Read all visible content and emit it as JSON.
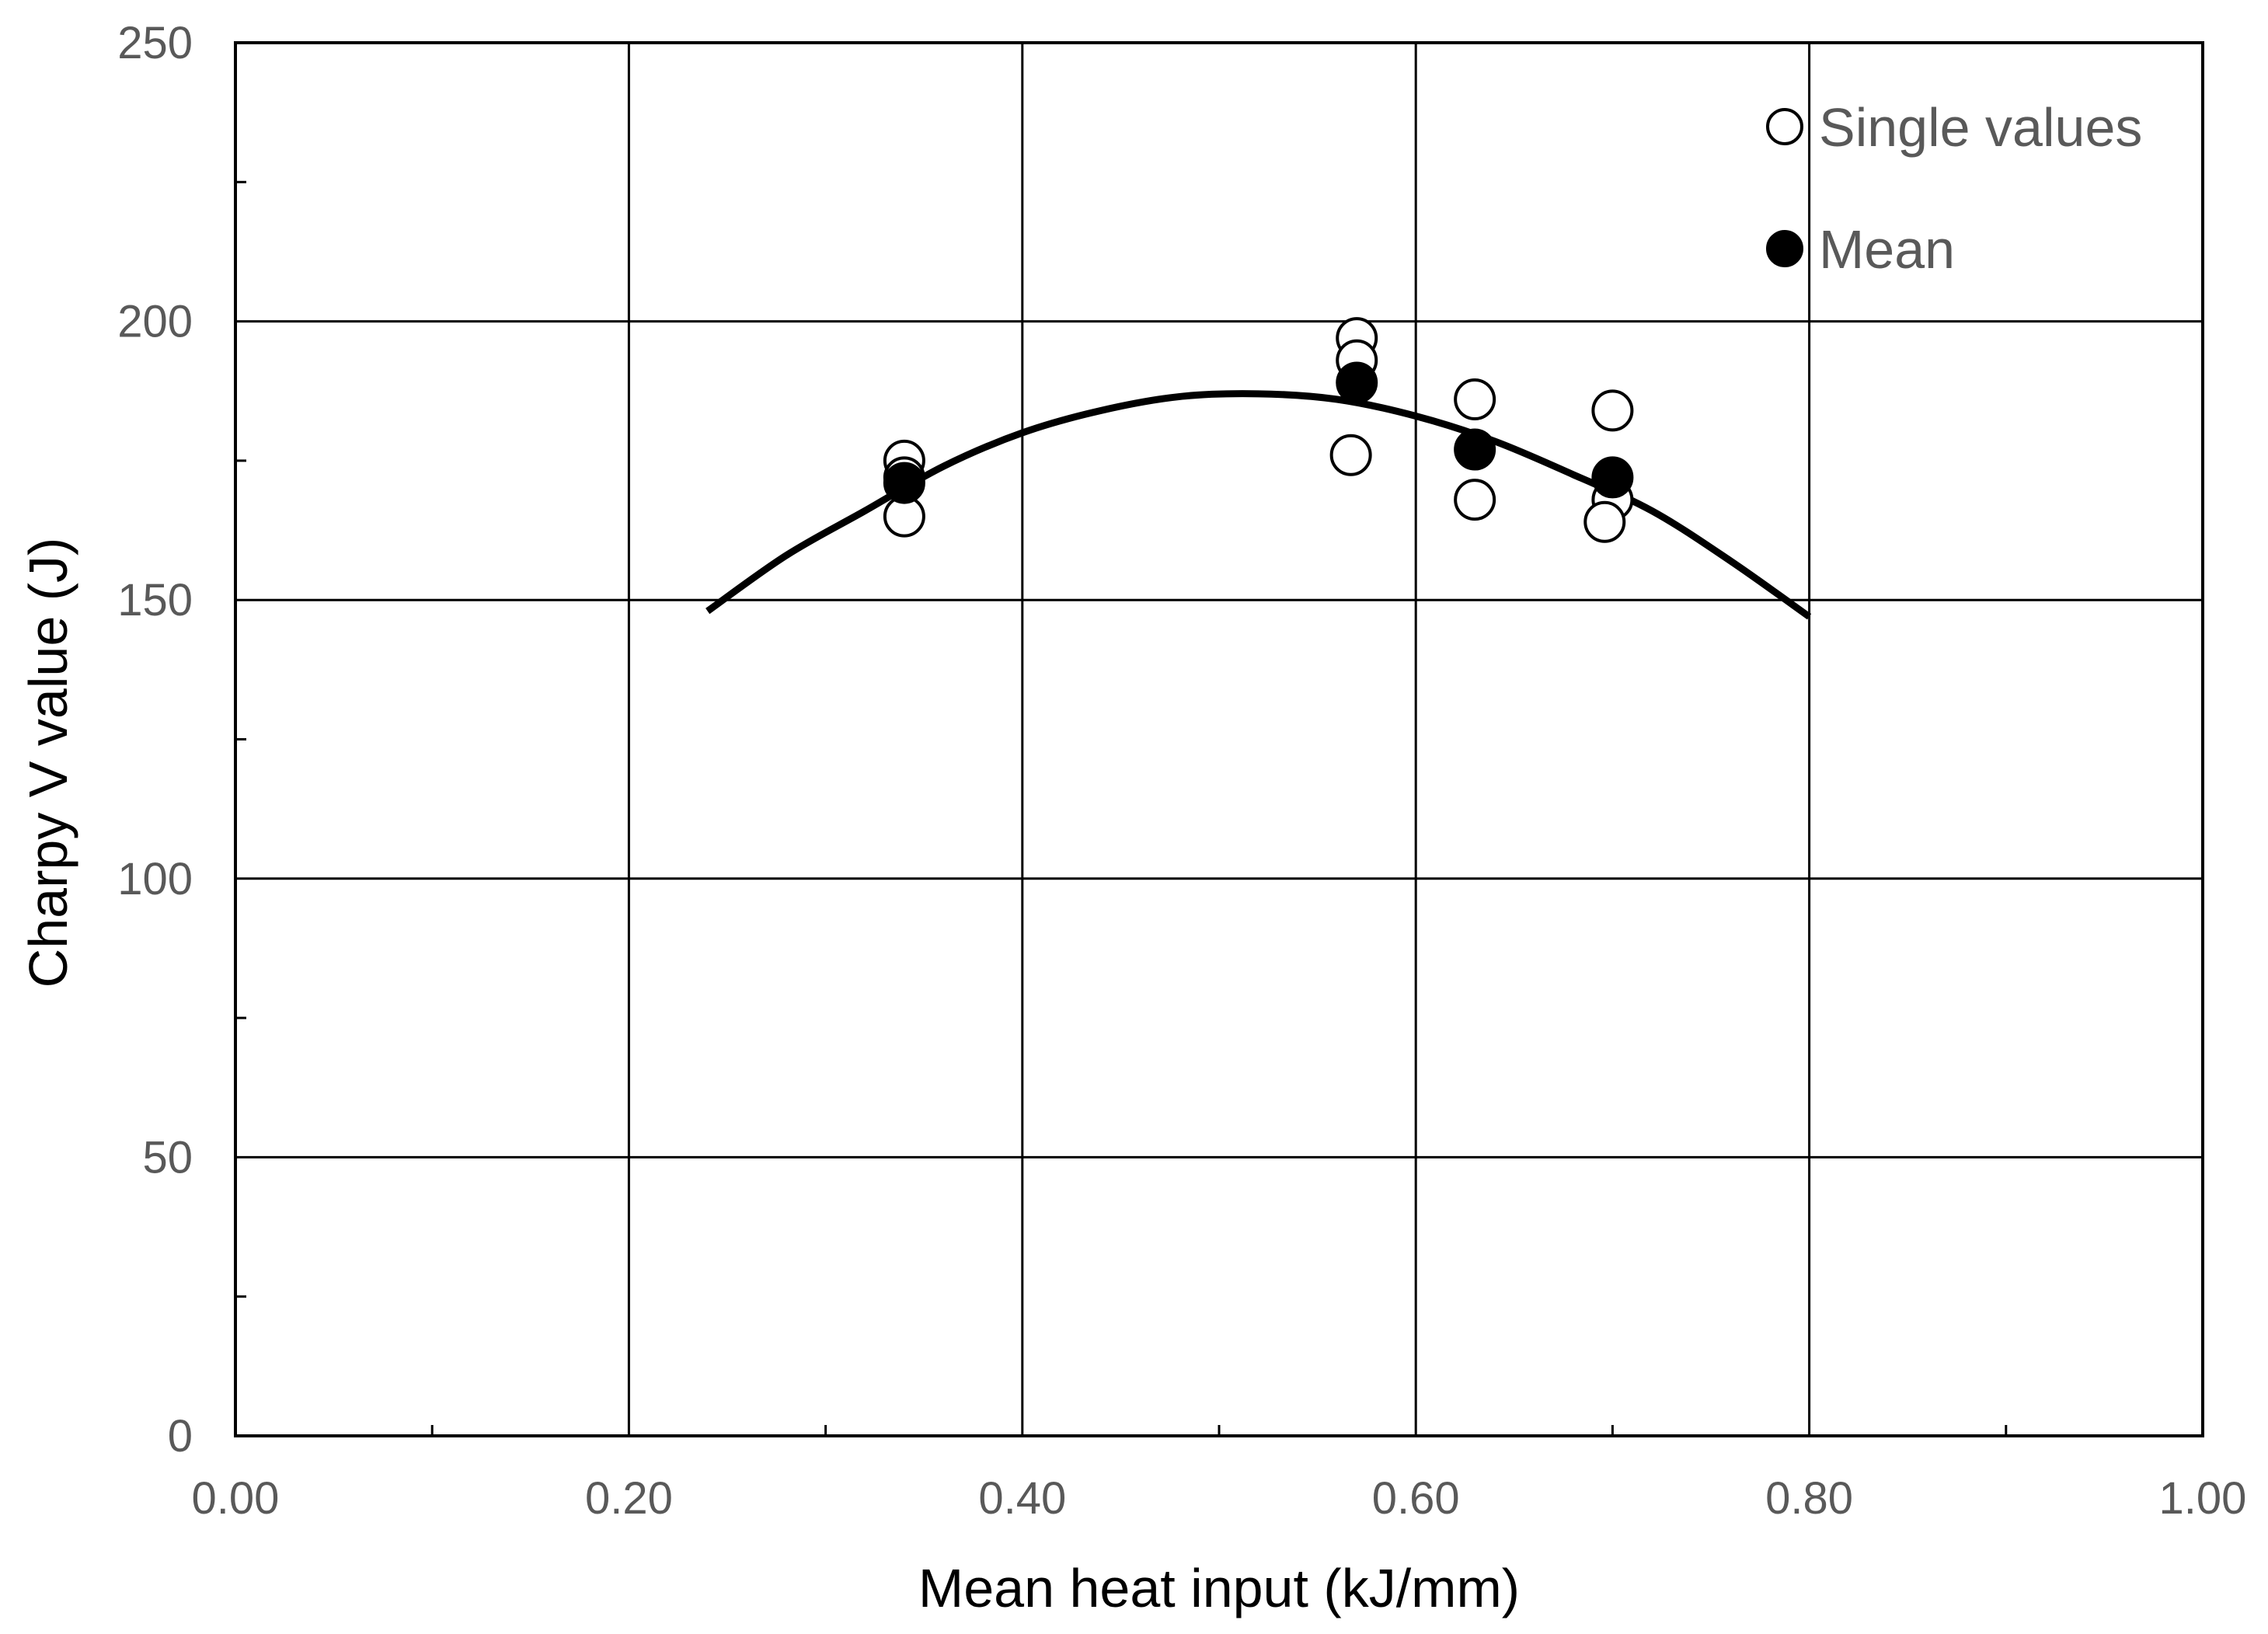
{
  "chart_data": {
    "type": "scatter",
    "title": "",
    "xlabel": "Mean heat input (kJ/mm)",
    "ylabel": "Charpy V value (J)",
    "xlim": [
      0,
      1.0
    ],
    "ylim": [
      0,
      250
    ],
    "x_ticks": [
      0,
      0.2,
      0.4,
      0.6,
      0.8,
      1.0
    ],
    "x_tick_labels": [
      "0.00",
      "0.20",
      "0.40",
      "0.60",
      "0.80",
      "1.00"
    ],
    "y_ticks": [
      0,
      50,
      100,
      150,
      200,
      250
    ],
    "y_tick_labels": [
      "0",
      "50",
      "100",
      "150",
      "200",
      "250"
    ],
    "x_minor_ticks": [
      0.1,
      0.3,
      0.5,
      0.7,
      0.9
    ],
    "y_minor_ticks": [
      25,
      75,
      125,
      175,
      225
    ],
    "grid": true,
    "legend_position": "top-right",
    "series": [
      {
        "name": "Single values",
        "marker": "open-circle",
        "points": [
          {
            "x": 0.34,
            "y": 175
          },
          {
            "x": 0.34,
            "y": 172
          },
          {
            "x": 0.34,
            "y": 165
          },
          {
            "x": 0.57,
            "y": 197
          },
          {
            "x": 0.57,
            "y": 193
          },
          {
            "x": 0.567,
            "y": 176
          },
          {
            "x": 0.63,
            "y": 186
          },
          {
            "x": 0.63,
            "y": 168
          },
          {
            "x": 0.7,
            "y": 184
          },
          {
            "x": 0.7,
            "y": 168
          },
          {
            "x": 0.696,
            "y": 164
          }
        ]
      },
      {
        "name": "Mean",
        "marker": "filled-circle",
        "points": [
          {
            "x": 0.34,
            "y": 171
          },
          {
            "x": 0.57,
            "y": 189
          },
          {
            "x": 0.63,
            "y": 177
          },
          {
            "x": 0.7,
            "y": 172
          }
        ]
      }
    ],
    "trendline": {
      "type": "polynomial-2",
      "x_range": [
        0.24,
        0.8
      ],
      "points": [
        {
          "x": 0.24,
          "y": 148
        },
        {
          "x": 0.28,
          "y": 158
        },
        {
          "x": 0.32,
          "y": 166
        },
        {
          "x": 0.36,
          "y": 174
        },
        {
          "x": 0.4,
          "y": 180
        },
        {
          "x": 0.44,
          "y": 184
        },
        {
          "x": 0.48,
          "y": 186.5
        },
        {
          "x": 0.52,
          "y": 187
        },
        {
          "x": 0.56,
          "y": 186
        },
        {
          "x": 0.6,
          "y": 183
        },
        {
          "x": 0.64,
          "y": 178.5
        },
        {
          "x": 0.68,
          "y": 172.5
        },
        {
          "x": 0.72,
          "y": 166
        },
        {
          "x": 0.76,
          "y": 157
        },
        {
          "x": 0.8,
          "y": 147
        }
      ]
    },
    "colors": {
      "grid": "#000000",
      "tick_text": "#595959",
      "markers": "#000000",
      "background": "#ffffff"
    }
  }
}
